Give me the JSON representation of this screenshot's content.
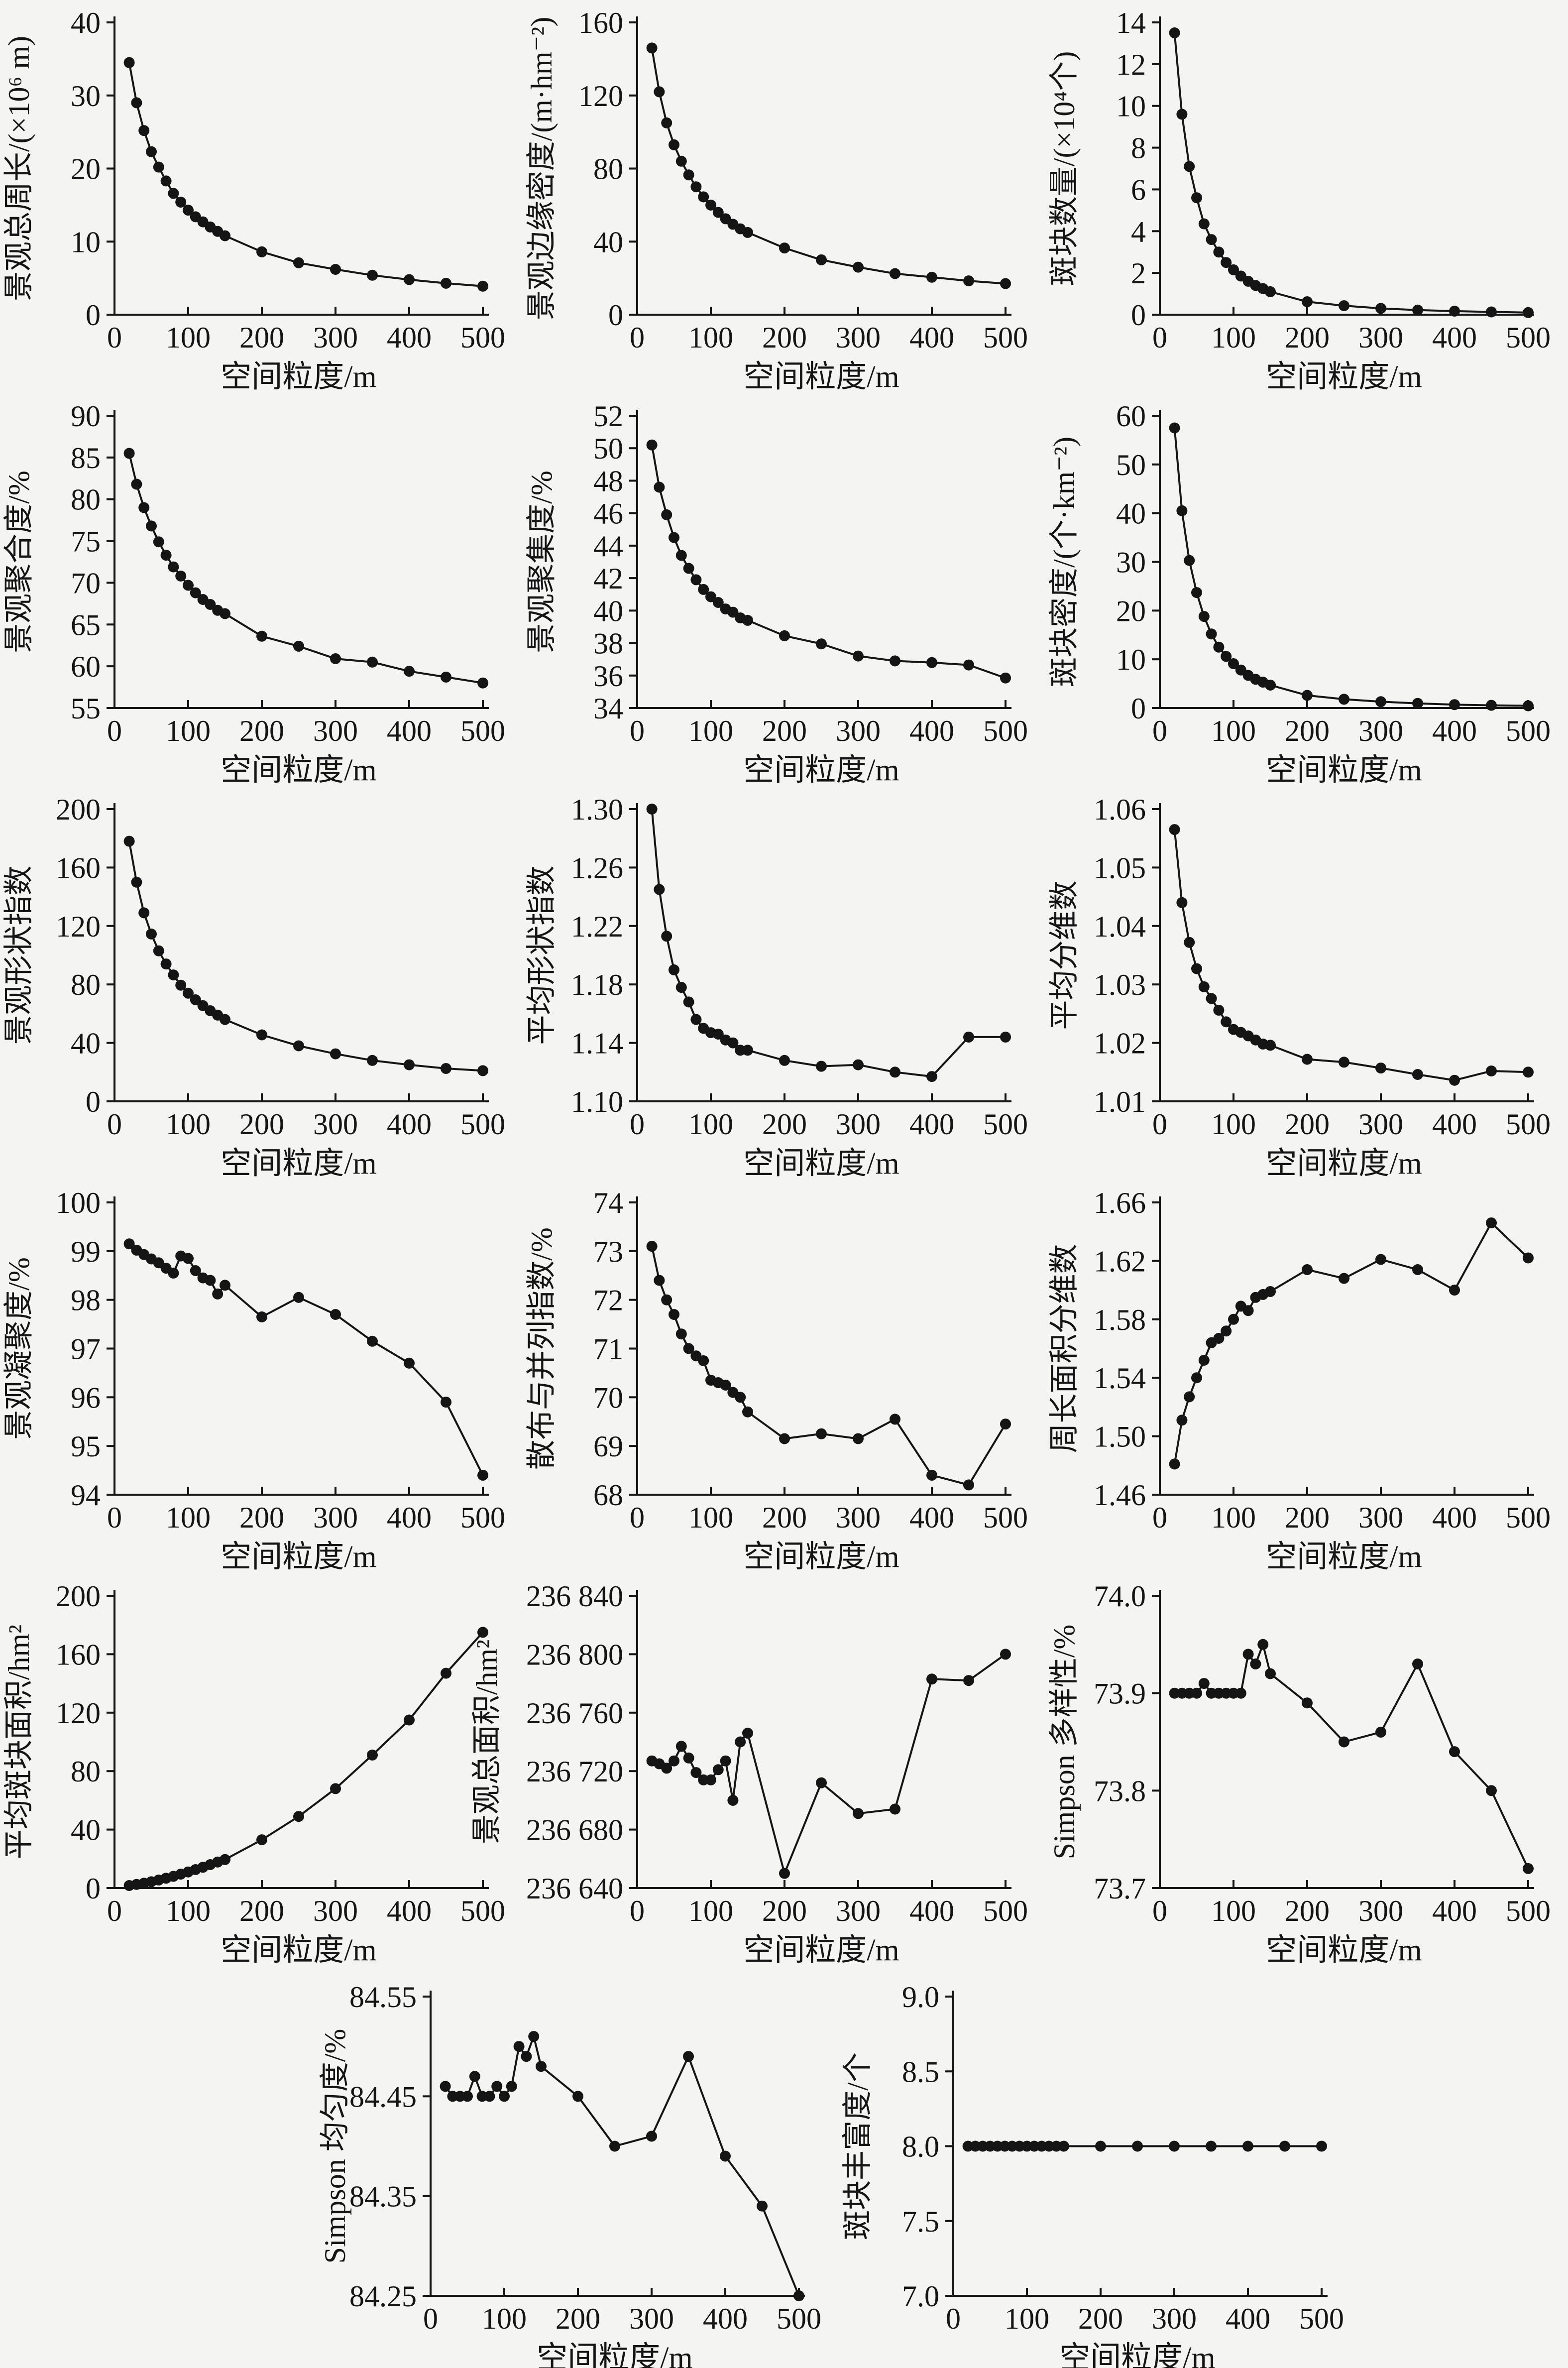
{
  "background": "#f4f4f2",
  "ink": "#151515",
  "xlabel": "空间粒度/m",
  "x_tick_labels": [
    "0",
    "100",
    "200",
    "300",
    "400",
    "500"
  ],
  "x_ticks": [
    0,
    100,
    200,
    300,
    400,
    500
  ],
  "chart_data": {
    "type": "line",
    "x_common": [
      20,
      30,
      40,
      50,
      60,
      70,
      80,
      90,
      100,
      110,
      120,
      130,
      140,
      150,
      200,
      250,
      300,
      350,
      400,
      450,
      500
    ],
    "charts": [
      {
        "id": "total-perimeter",
        "ylabel": "景观总周长/(×10⁶ m)",
        "ylim": [
          0,
          40
        ],
        "yticks": [
          0,
          10,
          20,
          30,
          40
        ],
        "ytick_labels": [
          "0",
          "10",
          "20",
          "30",
          "40"
        ],
        "y": [
          34.5,
          29,
          25.2,
          22.3,
          20.2,
          18.3,
          16.6,
          15.4,
          14.3,
          13.4,
          12.7,
          12.0,
          11.4,
          10.8,
          8.6,
          7.1,
          6.2,
          5.4,
          4.8,
          4.3,
          3.9
        ]
      },
      {
        "id": "edge-density",
        "ylabel": "景观边缘密度/(m·hm⁻²)",
        "ylim": [
          0,
          160
        ],
        "yticks": [
          0,
          40,
          80,
          120,
          160
        ],
        "ytick_labels": [
          "0",
          "40",
          "80",
          "120",
          "160"
        ],
        "y": [
          146,
          122,
          105,
          93,
          84,
          76.5,
          70,
          64.5,
          60,
          56,
          52.5,
          49.5,
          47,
          45,
          36.5,
          30,
          26,
          22.5,
          20.5,
          18.5,
          17
        ]
      },
      {
        "id": "patch-count",
        "ylabel": "斑块数量/(×10⁴个)",
        "ylim": [
          0,
          14
        ],
        "yticks": [
          0,
          2,
          4,
          6,
          8,
          10,
          12,
          14
        ],
        "ytick_labels": [
          "0",
          "2",
          "4",
          "6",
          "8",
          "10",
          "12",
          "14"
        ],
        "y": [
          13.5,
          9.6,
          7.1,
          5.6,
          4.35,
          3.6,
          3.0,
          2.5,
          2.15,
          1.85,
          1.6,
          1.4,
          1.25,
          1.1,
          0.62,
          0.43,
          0.3,
          0.22,
          0.17,
          0.13,
          0.1
        ]
      },
      {
        "id": "aggregation",
        "ylabel": "景观聚合度/%",
        "ylim": [
          55,
          90
        ],
        "yticks": [
          55,
          60,
          65,
          70,
          75,
          80,
          85,
          90
        ],
        "ytick_labels": [
          "55",
          "60",
          "65",
          "70",
          "75",
          "80",
          "85",
          "90"
        ],
        "y": [
          85.5,
          81.8,
          79.0,
          76.8,
          74.9,
          73.3,
          71.9,
          70.8,
          69.7,
          68.8,
          68.0,
          67.4,
          66.7,
          66.3,
          63.6,
          62.4,
          60.9,
          60.5,
          59.4,
          58.7,
          58.0
        ]
      },
      {
        "id": "contagion",
        "ylabel": "景观聚集度/%",
        "ylim": [
          34,
          52
        ],
        "yticks": [
          34,
          36,
          38,
          40,
          42,
          44,
          46,
          48,
          50,
          52
        ],
        "ytick_labels": [
          "34",
          "36",
          "38",
          "40",
          "42",
          "44",
          "46",
          "48",
          "50",
          "52"
        ],
        "y": [
          50.2,
          47.6,
          45.9,
          44.5,
          43.4,
          42.6,
          41.9,
          41.3,
          40.85,
          40.5,
          40.1,
          39.9,
          39.55,
          39.4,
          38.45,
          37.95,
          37.2,
          36.9,
          36.8,
          36.65,
          35.85
        ]
      },
      {
        "id": "patch-density",
        "ylabel": "斑块密度/(个·km⁻²)",
        "ylim": [
          0,
          60
        ],
        "yticks": [
          0,
          10,
          20,
          30,
          40,
          50,
          60
        ],
        "ytick_labels": [
          "0",
          "10",
          "20",
          "30",
          "40",
          "50",
          "60"
        ],
        "y": [
          57.5,
          40.5,
          30.3,
          23.7,
          18.8,
          15.2,
          12.5,
          10.6,
          9.1,
          7.8,
          6.7,
          5.9,
          5.3,
          4.7,
          2.6,
          1.8,
          1.3,
          0.95,
          0.7,
          0.55,
          0.45
        ]
      },
      {
        "id": "landscape-shape-index",
        "ylabel": "景观形状指数",
        "ylim": [
          0,
          200
        ],
        "yticks": [
          0,
          40,
          80,
          120,
          160,
          200
        ],
        "ytick_labels": [
          "0",
          "40",
          "80",
          "120",
          "160",
          "200"
        ],
        "y": [
          178,
          150,
          129,
          114.5,
          103,
          94,
          86.5,
          79.5,
          74,
          69.5,
          65.5,
          62,
          59,
          56,
          45.5,
          38,
          32.5,
          28,
          25,
          22.5,
          21
        ]
      },
      {
        "id": "mean-shape-index",
        "ylabel": "平均形状指数",
        "ylim": [
          1.1,
          1.3
        ],
        "yticks": [
          1.1,
          1.14,
          1.18,
          1.22,
          1.26,
          1.3
        ],
        "ytick_labels": [
          "1.10",
          "1.14",
          "1.18",
          "1.22",
          "1.26",
          "1.30"
        ],
        "y": [
          1.3,
          1.245,
          1.213,
          1.19,
          1.178,
          1.168,
          1.156,
          1.15,
          1.147,
          1.146,
          1.142,
          1.14,
          1.135,
          1.135,
          1.128,
          1.124,
          1.125,
          1.12,
          1.117,
          1.144,
          1.144
        ]
      },
      {
        "id": "mean-fractal-dimension",
        "ylabel": "平均分维数",
        "ylim": [
          1.01,
          1.06
        ],
        "yticks": [
          1.01,
          1.02,
          1.03,
          1.04,
          1.05,
          1.06
        ],
        "ytick_labels": [
          "1.01",
          "1.02",
          "1.03",
          "1.04",
          "1.05",
          "1.06"
        ],
        "y": [
          1.0565,
          1.044,
          1.0372,
          1.0327,
          1.0296,
          1.0276,
          1.0256,
          1.0236,
          1.0223,
          1.0218,
          1.0212,
          1.0205,
          1.0198,
          1.0196,
          1.0172,
          1.0167,
          1.0157,
          1.0146,
          1.0136,
          1.0152,
          1.015
        ]
      },
      {
        "id": "cohesion",
        "ylabel": "景观凝聚度/%",
        "ylim": [
          94,
          100
        ],
        "yticks": [
          94,
          95,
          96,
          97,
          98,
          99,
          100
        ],
        "ytick_labels": [
          "94",
          "95",
          "96",
          "97",
          "98",
          "99",
          "100"
        ],
        "y": [
          99.15,
          99.02,
          98.93,
          98.84,
          98.76,
          98.65,
          98.55,
          98.9,
          98.85,
          98.6,
          98.45,
          98.4,
          98.12,
          98.3,
          97.65,
          98.05,
          97.7,
          97.15,
          96.7,
          95.9,
          94.4
        ]
      },
      {
        "id": "interspersion-juxtaposition",
        "ylabel": "散布与并列指数/%",
        "ylim": [
          68,
          74
        ],
        "yticks": [
          68,
          69,
          70,
          71,
          72,
          73,
          74
        ],
        "ytick_labels": [
          "68",
          "69",
          "70",
          "71",
          "72",
          "73",
          "74"
        ],
        "y": [
          73.1,
          72.4,
          72.0,
          71.7,
          71.3,
          71.0,
          70.85,
          70.75,
          70.35,
          70.3,
          70.25,
          70.1,
          70.0,
          69.7,
          69.15,
          69.25,
          69.15,
          69.55,
          68.4,
          68.2,
          69.45
        ]
      },
      {
        "id": "perimeter-area-fractal",
        "ylabel": "周长面积分维数",
        "ylim": [
          1.46,
          1.66
        ],
        "yticks": [
          1.46,
          1.5,
          1.54,
          1.58,
          1.62,
          1.66
        ],
        "ytick_labels": [
          "1.46",
          "1.50",
          "1.54",
          "1.58",
          "1.62",
          "1.66"
        ],
        "y": [
          1.481,
          1.511,
          1.527,
          1.54,
          1.552,
          1.564,
          1.567,
          1.572,
          1.58,
          1.589,
          1.586,
          1.595,
          1.597,
          1.599,
          1.614,
          1.608,
          1.621,
          1.614,
          1.6,
          1.646,
          1.622
        ]
      },
      {
        "id": "mean-patch-area",
        "ylabel": "平均斑块面积/hm²",
        "ylim": [
          0,
          200
        ],
        "yticks": [
          0,
          40,
          80,
          120,
          160,
          200
        ],
        "ytick_labels": [
          "0",
          "40",
          "80",
          "120",
          "160",
          "200"
        ],
        "y": [
          1.7,
          2.5,
          3.3,
          4.3,
          5.5,
          6.7,
          8.0,
          9.5,
          11,
          12.6,
          14.2,
          16,
          17.8,
          19.5,
          33,
          49,
          68,
          91,
          115,
          147,
          175
        ]
      },
      {
        "id": "total-area",
        "ylabel": "景观总面积/hm²",
        "ylim": [
          236640,
          236840
        ],
        "yticks": [
          236640,
          236680,
          236720,
          236760,
          236800,
          236840
        ],
        "ytick_labels": [
          "236 640",
          "236 680",
          "236 720",
          "236 760",
          "236 800",
          "236 840"
        ],
        "y": [
          236727,
          236725,
          236722,
          236727,
          236737,
          236729,
          236719,
          236714,
          236714,
          236721,
          236727,
          236700,
          236740,
          236746,
          236650,
          236712,
          236691,
          236694,
          236783,
          236782,
          236800
        ]
      },
      {
        "id": "simpson-diversity",
        "ylabel": "Simpson 多样性/%",
        "ylim": [
          73.7,
          74.0
        ],
        "yticks": [
          73.7,
          73.8,
          73.9,
          74.0
        ],
        "ytick_labels": [
          "73.7",
          "73.8",
          "73.9",
          "74.0"
        ],
        "y": [
          73.9,
          73.9,
          73.9,
          73.9,
          73.91,
          73.9,
          73.9,
          73.9,
          73.9,
          73.9,
          73.94,
          73.93,
          73.95,
          73.92,
          73.89,
          73.85,
          73.86,
          73.93,
          73.84,
          73.8,
          73.72
        ]
      },
      {
        "id": "simpson-evenness",
        "ylabel": "Simpson 均匀度/%",
        "ylim": [
          84.25,
          84.55
        ],
        "yticks": [
          84.25,
          84.35,
          84.45,
          84.55
        ],
        "ytick_labels": [
          "84.25",
          "84.35",
          "84.45",
          "84.55"
        ],
        "y": [
          84.46,
          84.45,
          84.45,
          84.45,
          84.47,
          84.45,
          84.45,
          84.46,
          84.45,
          84.46,
          84.5,
          84.49,
          84.51,
          84.48,
          84.45,
          84.4,
          84.41,
          84.49,
          84.39,
          84.34,
          84.25
        ]
      },
      {
        "id": "patch-richness",
        "ylabel": "斑块丰富度/个",
        "ylim": [
          7.0,
          9.0
        ],
        "yticks": [
          7.0,
          7.5,
          8.0,
          8.5,
          9.0
        ],
        "ytick_labels": [
          "7.0",
          "7.5",
          "8.0",
          "8.5",
          "9.0"
        ],
        "y": [
          8,
          8,
          8,
          8,
          8,
          8,
          8,
          8,
          8,
          8,
          8,
          8,
          8,
          8,
          8,
          8,
          8,
          8,
          8,
          8,
          8
        ]
      }
    ]
  }
}
